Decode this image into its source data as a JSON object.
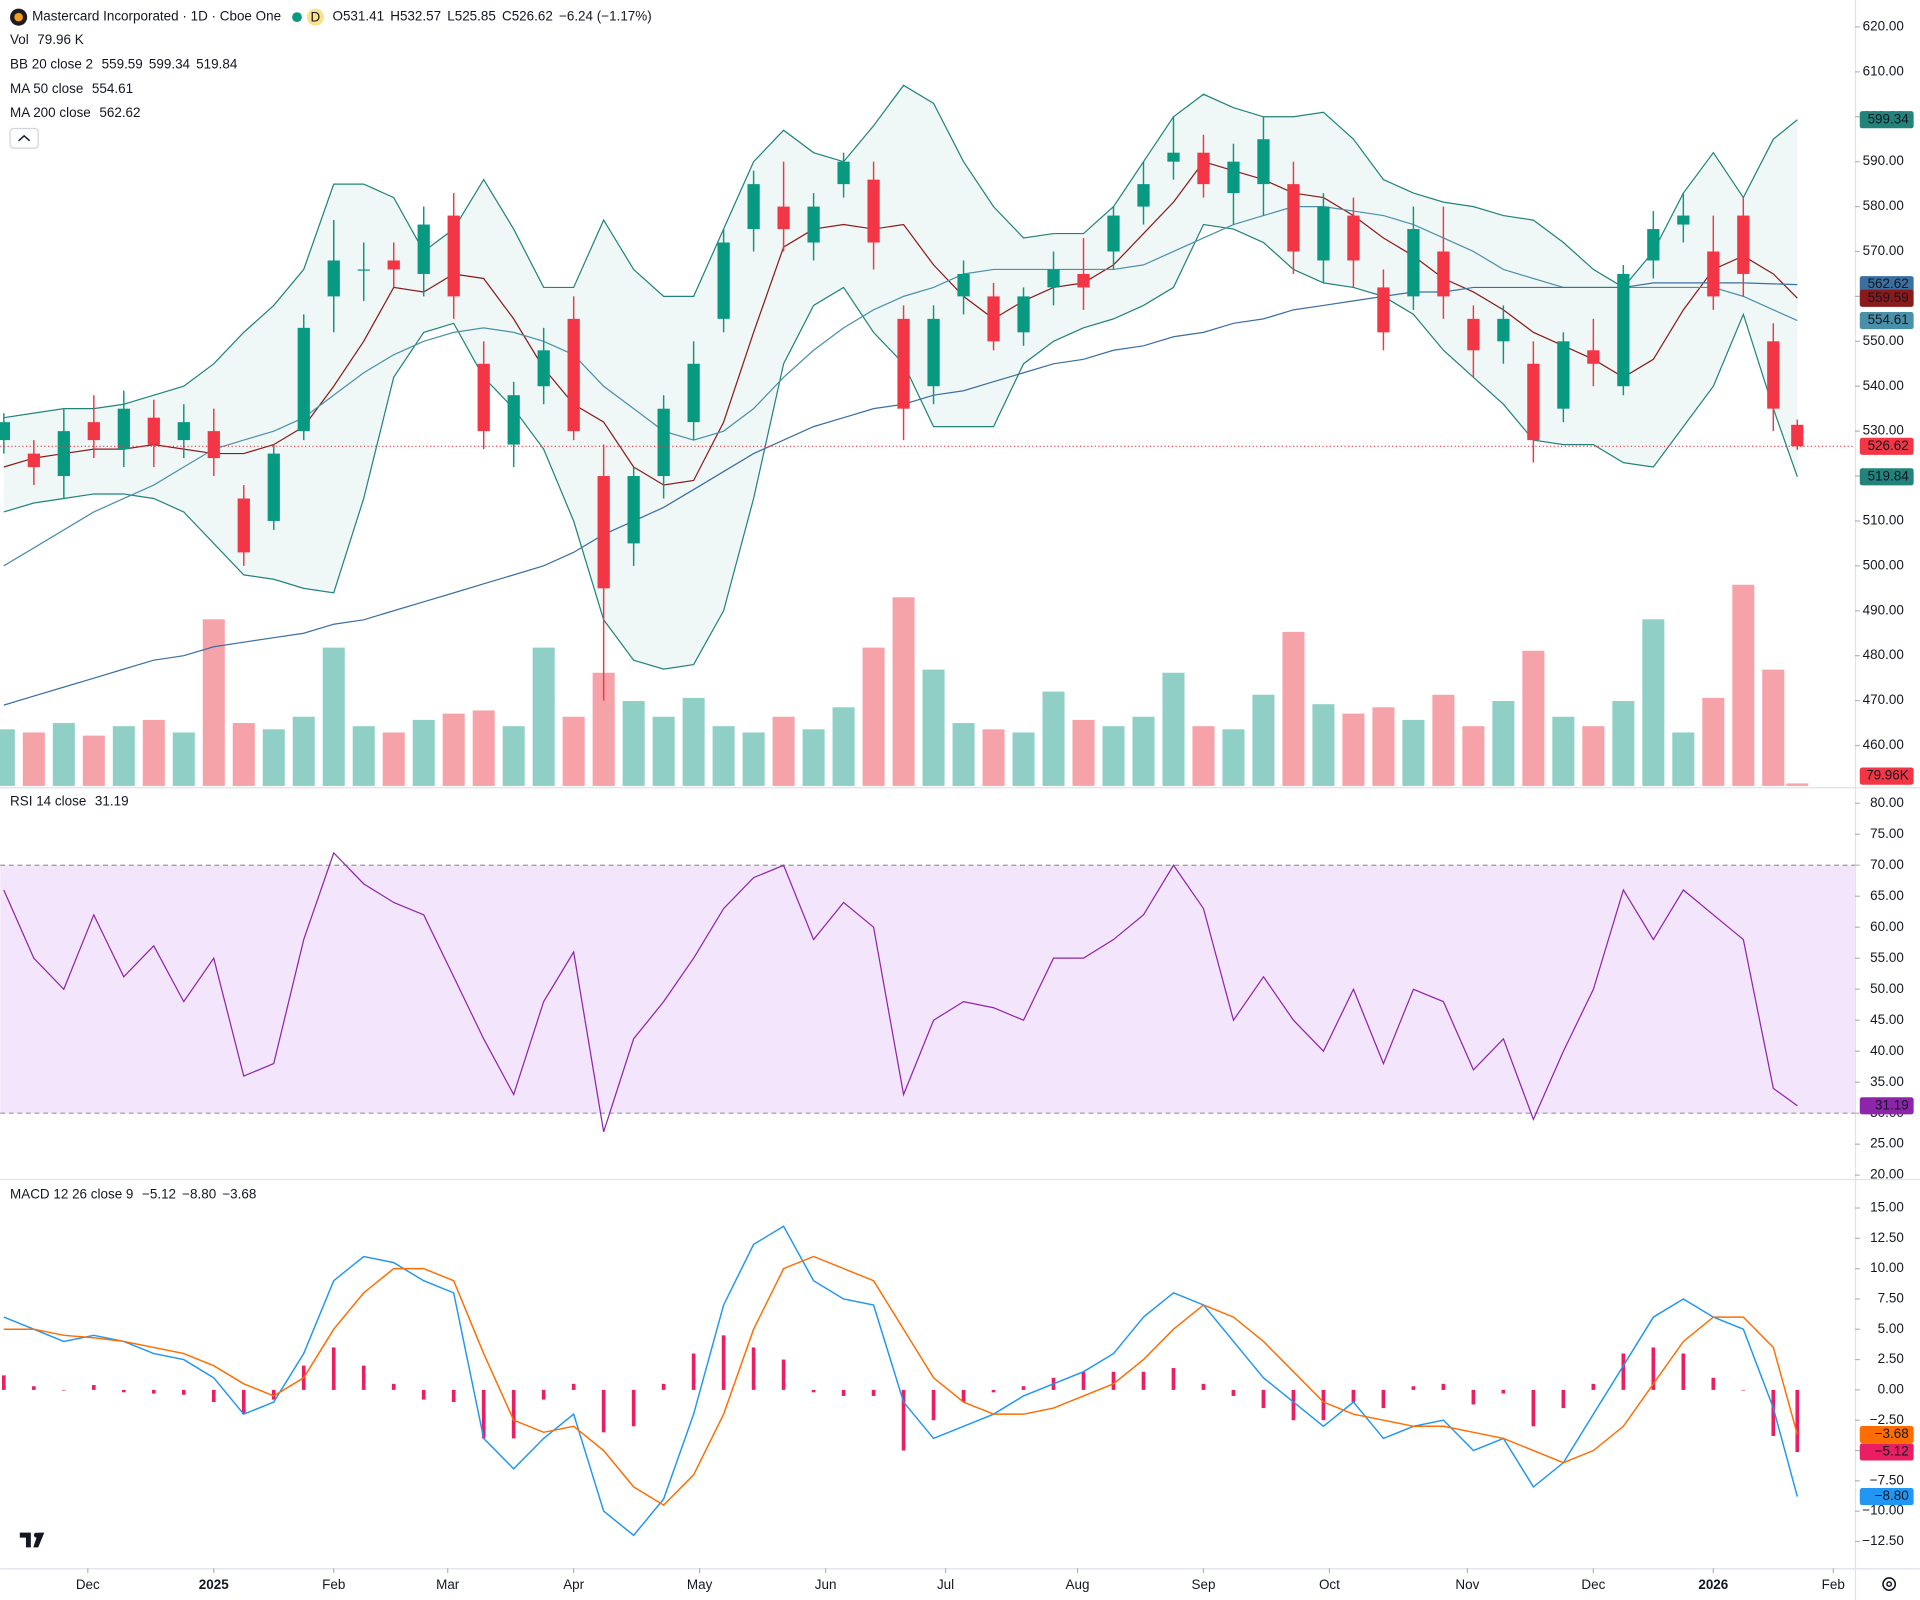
{
  "chart_data": [
    {
      "type": "candlestick",
      "title": "Mastercard Incorporated · 1D · Cboe One",
      "interval_badge": "D",
      "ohlc_prefixes": [
        "O",
        "H",
        "L",
        "C"
      ],
      "change": "−6.24 (−1.17%)",
      "x": [
        0,
        5,
        10,
        15,
        20,
        25,
        30,
        35,
        40,
        45,
        50,
        55,
        60,
        65,
        70,
        75,
        80,
        85,
        90,
        95,
        100,
        105,
        110,
        115,
        120,
        125,
        130,
        135,
        140,
        145,
        150,
        155,
        160,
        165,
        170,
        175,
        180,
        185,
        190,
        195,
        200,
        205,
        210,
        215,
        220,
        225,
        230,
        235,
        240,
        245,
        250,
        255,
        260,
        265,
        270,
        275,
        280,
        285,
        290,
        295,
        299
      ],
      "xlim": [
        -0.6,
        308.6
      ],
      "xticks": [
        {
          "value": 14,
          "label": "Dec"
        },
        {
          "value": 35,
          "label": "2025"
        },
        {
          "value": 55,
          "label": "Feb"
        },
        {
          "value": 74,
          "label": "Mar"
        },
        {
          "value": 95,
          "label": "Apr"
        },
        {
          "value": 116,
          "label": "May"
        },
        {
          "value": 137,
          "label": "Jun"
        },
        {
          "value": 157,
          "label": "Jul"
        },
        {
          "value": 179,
          "label": "Aug"
        },
        {
          "value": 200,
          "label": "Sep"
        },
        {
          "value": 221,
          "label": "Oct"
        },
        {
          "value": 244,
          "label": "Nov"
        },
        {
          "value": 265,
          "label": "Dec"
        },
        {
          "value": 285,
          "label": "2026"
        },
        {
          "value": 305,
          "label": "Feb"
        }
      ],
      "ylim": [
        451,
        626
      ],
      "yticks": [
        {
          "value": 620,
          "label": "620.00"
        },
        {
          "value": 610,
          "label": "610.00"
        },
        {
          "value": 600,
          "label": "600.00"
        },
        {
          "value": 590,
          "label": "590.00"
        },
        {
          "value": 580,
          "label": "580.00"
        },
        {
          "value": 570,
          "label": "570.00"
        },
        {
          "value": 560,
          "label": "560.00"
        },
        {
          "value": 550,
          "label": "550.00"
        },
        {
          "value": 540,
          "label": "540.00"
        },
        {
          "value": 530,
          "label": "530.00"
        },
        {
          "value": 520,
          "label": "520.00"
        },
        {
          "value": 510,
          "label": "510.00"
        },
        {
          "value": 500,
          "label": "500.00"
        },
        {
          "value": 490,
          "label": "490.00"
        },
        {
          "value": 480,
          "label": "480.00"
        },
        {
          "value": 470,
          "label": "470.00"
        },
        {
          "value": 460,
          "label": "460.00"
        }
      ],
      "open": [
        528,
        525,
        520,
        532,
        526,
        533,
        528,
        530,
        515,
        510,
        530,
        560,
        566,
        568,
        565,
        578,
        545,
        527,
        540,
        555,
        520,
        505,
        520,
        532,
        555,
        575,
        580,
        572,
        585,
        586,
        555,
        540,
        560,
        560,
        552,
        562,
        565,
        570,
        580,
        590,
        592,
        583,
        585,
        585,
        568,
        578,
        562,
        560,
        570,
        555,
        550,
        545,
        535,
        548,
        540,
        568,
        576,
        570,
        578,
        550,
        531.41
      ],
      "high": [
        534,
        528,
        535,
        538,
        539,
        537,
        536,
        535,
        518,
        527,
        556,
        577,
        572,
        572,
        580,
        583,
        550,
        541,
        553,
        560,
        527,
        522,
        538,
        550,
        575,
        588,
        590,
        583,
        592,
        590,
        558,
        558,
        568,
        563,
        562,
        570,
        573,
        580,
        590,
        600,
        596,
        594,
        600,
        590,
        583,
        582,
        566,
        580,
        580,
        558,
        558,
        550,
        552,
        555,
        567,
        579,
        583,
        578,
        582,
        554,
        532.57
      ],
      "low": [
        525,
        518,
        515,
        524,
        522,
        522,
        524,
        520,
        500,
        508,
        528,
        552,
        559,
        562,
        560,
        555,
        526,
        522,
        536,
        528,
        470,
        500,
        515,
        528,
        552,
        570,
        570,
        568,
        582,
        566,
        528,
        536,
        556,
        548,
        549,
        558,
        557,
        566,
        576,
        586,
        582,
        576,
        578,
        565,
        563,
        562,
        548,
        557,
        555,
        542,
        545,
        523,
        532,
        540,
        538,
        564,
        572,
        557,
        560,
        530,
        525.85
      ],
      "close": [
        532,
        522,
        530,
        528,
        535,
        527,
        532,
        524,
        503,
        525,
        553,
        568,
        566,
        566,
        576,
        560,
        530,
        538,
        548,
        530,
        495,
        520,
        535,
        545,
        572,
        585,
        575,
        580,
        590,
        572,
        535,
        555,
        565,
        550,
        560,
        566,
        562,
        578,
        585,
        592,
        585,
        590,
        595,
        570,
        580,
        568,
        552,
        575,
        560,
        548,
        555,
        528,
        550,
        545,
        565,
        575,
        578,
        560,
        565,
        535,
        526.62
      ],
      "up_color": "#089981",
      "down_color": "#f23645",
      "bollinger": {
        "name": "BB 20 close 2",
        "band_color": "#22837b",
        "basis_color": "#8b1a1a",
        "fill_color": "#e6f4f2",
        "upper": [
          533,
          534,
          535,
          535,
          536,
          538,
          540,
          545,
          552,
          558,
          566,
          585,
          585,
          582,
          570,
          575,
          586,
          575,
          562,
          562,
          577,
          566,
          560,
          560,
          575,
          590,
          597,
          592,
          590,
          598,
          607,
          603,
          590,
          580,
          573,
          574,
          574,
          580,
          590,
          600,
          605,
          602,
          600,
          600,
          601,
          595,
          586,
          583,
          581,
          580,
          578,
          577,
          572,
          566,
          562,
          570,
          583,
          592,
          582,
          595,
          599.34
        ],
        "middle": [
          522,
          524,
          525,
          526,
          526,
          527,
          526,
          525,
          525,
          527,
          531,
          540,
          550,
          562,
          561,
          565,
          564,
          555,
          544,
          536,
          532,
          522,
          518,
          519,
          532,
          552,
          571,
          575,
          576,
          575,
          576,
          567,
          560,
          555,
          559,
          562,
          563,
          567,
          574,
          581,
          590,
          588,
          586,
          583,
          582,
          578,
          573,
          569,
          564,
          561,
          557,
          552,
          549,
          546,
          542,
          546,
          557,
          566,
          569,
          565,
          559.59
        ],
        "lower": [
          512,
          514,
          515,
          516,
          516,
          515,
          512,
          505,
          498,
          497,
          495,
          494,
          515,
          542,
          552,
          554,
          542,
          535,
          526,
          510,
          488,
          479,
          477,
          478,
          490,
          515,
          545,
          558,
          562,
          552,
          545,
          531,
          531,
          531,
          545,
          550,
          553,
          555,
          558,
          562,
          576,
          575,
          572,
          566,
          563,
          562,
          560,
          556,
          548,
          542,
          536,
          528,
          527,
          527,
          523,
          522,
          531,
          540,
          556,
          535,
          519.84
        ]
      },
      "moving_averages": [
        {
          "name": "MA 50 close",
          "color": "#4a90a8",
          "values": [
            500,
            504,
            508,
            512,
            515,
            518,
            522,
            526,
            528,
            530,
            533,
            538,
            543,
            547,
            550,
            552,
            553,
            552,
            550,
            547,
            540,
            535,
            530,
            528,
            530,
            535,
            542,
            548,
            553,
            557,
            560,
            562,
            565,
            566,
            566,
            566,
            566,
            566,
            567,
            570,
            573,
            576,
            578,
            580,
            580,
            579,
            578,
            576,
            573,
            570,
            566,
            564,
            562,
            562,
            562,
            562,
            562,
            562,
            560,
            557,
            554.61
          ]
        },
        {
          "name": "MA 200 close",
          "color": "#3a6fa0",
          "values": [
            469,
            471,
            473,
            475,
            477,
            479,
            480,
            482,
            483,
            484,
            485,
            487,
            488,
            490,
            492,
            494,
            496,
            498,
            500,
            503,
            507,
            510,
            513,
            517,
            521,
            525,
            528,
            531,
            533,
            535,
            536,
            538,
            539,
            541,
            543,
            545,
            546,
            548,
            549,
            551,
            552,
            554,
            555,
            557,
            558,
            559,
            560,
            561,
            561,
            562,
            562,
            562,
            562,
            562,
            562,
            563,
            563,
            563,
            563,
            562.8,
            562.62
          ]
        }
      ],
      "volume": {
        "name": "Vol",
        "legend_value": "79.96 K",
        "axis_label": "79.96K",
        "vlim": [
          0,
          25000
        ],
        "up_color": "#8fcfc6",
        "down_color": "#f5a3a8",
        "values": [
          1800,
          1700,
          2000,
          1600,
          1900,
          2100,
          1700,
          5300,
          2000,
          1800,
          2200,
          4400,
          1900,
          1700,
          2100,
          2300,
          2400,
          1900,
          4400,
          2200,
          3600,
          2700,
          2200,
          2800,
          1900,
          1700,
          2200,
          1800,
          2500,
          4400,
          6000,
          3700,
          2000,
          1800,
          1700,
          3000,
          2100,
          1900,
          2200,
          3600,
          1900,
          1800,
          2900,
          4900,
          2600,
          2300,
          2500,
          2100,
          2900,
          1900,
          2700,
          4300,
          2200,
          1900,
          2700,
          5300,
          1700,
          2800,
          6400,
          3700,
          79.96
        ]
      }
    },
    {
      "type": "line",
      "title": "RSI 14 close",
      "color": "#8e24aa",
      "band": [
        30,
        70
      ],
      "band_color": "#f3e5fc",
      "ylim": [
        19.6,
        82.2
      ],
      "yticks": [
        {
          "value": 80,
          "label": "80.00"
        },
        {
          "value": 75,
          "label": "75.00"
        },
        {
          "value": 70,
          "label": "70.00"
        },
        {
          "value": 65,
          "label": "65.00"
        },
        {
          "value": 60,
          "label": "60.00"
        },
        {
          "value": 55,
          "label": "55.00"
        },
        {
          "value": 50,
          "label": "50.00"
        },
        {
          "value": 45,
          "label": "45.00"
        },
        {
          "value": 40,
          "label": "40.00"
        },
        {
          "value": 35,
          "label": "35.00"
        },
        {
          "value": 30,
          "label": "30.00"
        },
        {
          "value": 25,
          "label": "25.00"
        },
        {
          "value": 20,
          "label": "20.00"
        }
      ],
      "values": [
        66,
        55,
        50,
        62,
        52,
        57,
        48,
        55,
        36,
        38,
        58,
        72,
        67,
        64,
        62,
        52,
        42,
        33,
        48,
        56,
        27,
        42,
        48,
        55,
        63,
        68,
        70,
        58,
        64,
        60,
        33,
        45,
        48,
        47,
        45,
        55,
        55,
        58,
        62,
        70,
        63,
        45,
        52,
        45,
        40,
        50,
        38,
        50,
        48,
        37,
        42,
        29,
        40,
        50,
        66,
        58,
        66,
        62,
        58,
        34,
        31.19
      ]
    },
    {
      "type": "macd",
      "title": "MACD 12 26 close 9",
      "ylim": [
        -14.6,
        17.2
      ],
      "yticks": [
        {
          "value": 15,
          "label": "15.00"
        },
        {
          "value": 12.5,
          "label": "12.50"
        },
        {
          "value": 10,
          "label": "10.00"
        },
        {
          "value": 7.5,
          "label": "7.50"
        },
        {
          "value": 5,
          "label": "5.00"
        },
        {
          "value": 2.5,
          "label": "2.50"
        },
        {
          "value": 0,
          "label": "0.00"
        },
        {
          "value": -2.5,
          "label": "−2.50"
        },
        {
          "value": -5,
          "label": "−5.00"
        },
        {
          "value": -7.5,
          "label": "−7.50"
        },
        {
          "value": -10,
          "label": "−10.00"
        },
        {
          "value": -12.5,
          "label": "−12.50"
        }
      ],
      "series": [
        {
          "style": "histogram",
          "color": "#e91e63",
          "legend_value": "−5.12",
          "values": [
            1.2,
            0.3,
            0,
            0.4,
            -0.2,
            -0.3,
            -0.4,
            -1,
            -2,
            -0.8,
            2,
            3.5,
            2,
            0.5,
            -0.8,
            -1,
            -4,
            -4,
            -0.8,
            0.5,
            -3.5,
            -3,
            0.5,
            3,
            4.5,
            3.5,
            2.5,
            -0.2,
            -0.5,
            -0.5,
            -5,
            -2.5,
            -1,
            -0.2,
            0.3,
            1,
            1.5,
            1.5,
            1.5,
            1.8,
            0.5,
            -0.5,
            -1.5,
            -2.5,
            -2.5,
            -1,
            -1.5,
            0.3,
            0.5,
            -1.2,
            -0.3,
            -3,
            -1.5,
            0.5,
            3,
            3.5,
            3,
            1,
            0,
            -3.8,
            -5.12
          ]
        },
        {
          "style": "line",
          "color": "#2196f3",
          "legend_value": "−8.80",
          "values": [
            6,
            5,
            4,
            4.5,
            4,
            3,
            2.5,
            1,
            -2,
            -1,
            3,
            9,
            11,
            10.5,
            9,
            8,
            -4,
            -6.5,
            -4,
            -2,
            -10,
            -12,
            -9,
            -2,
            7,
            12,
            13.5,
            9,
            7.5,
            7,
            -1,
            -4,
            -3,
            -2,
            -0.5,
            0.5,
            1.5,
            3,
            6,
            8,
            7,
            4,
            1,
            -1,
            -3,
            -1,
            -4,
            -3,
            -2.5,
            -5,
            -4,
            -8,
            -6,
            -2,
            2,
            6,
            7.5,
            6,
            5,
            -1.5,
            -8.8
          ]
        },
        {
          "style": "line",
          "color": "#ff6d00",
          "legend_value": "−3.68",
          "values": [
            5,
            5,
            4.5,
            4.3,
            4,
            3.5,
            3,
            2,
            0.5,
            -0.5,
            1,
            5,
            8,
            10,
            10,
            9,
            3,
            -2.5,
            -3.5,
            -3,
            -5,
            -8,
            -9.5,
            -7,
            -2,
            5,
            10,
            11,
            10,
            9,
            5,
            1,
            -1,
            -2,
            -2,
            -1.5,
            -0.5,
            0.5,
            2.5,
            5,
            7,
            6,
            4,
            1.5,
            -1,
            -2,
            -2.5,
            -3,
            -3,
            -3.5,
            -4,
            -5,
            -6,
            -5,
            -3,
            0.5,
            4,
            6,
            6,
            3.5,
            -3.68
          ]
        }
      ]
    }
  ]
}
